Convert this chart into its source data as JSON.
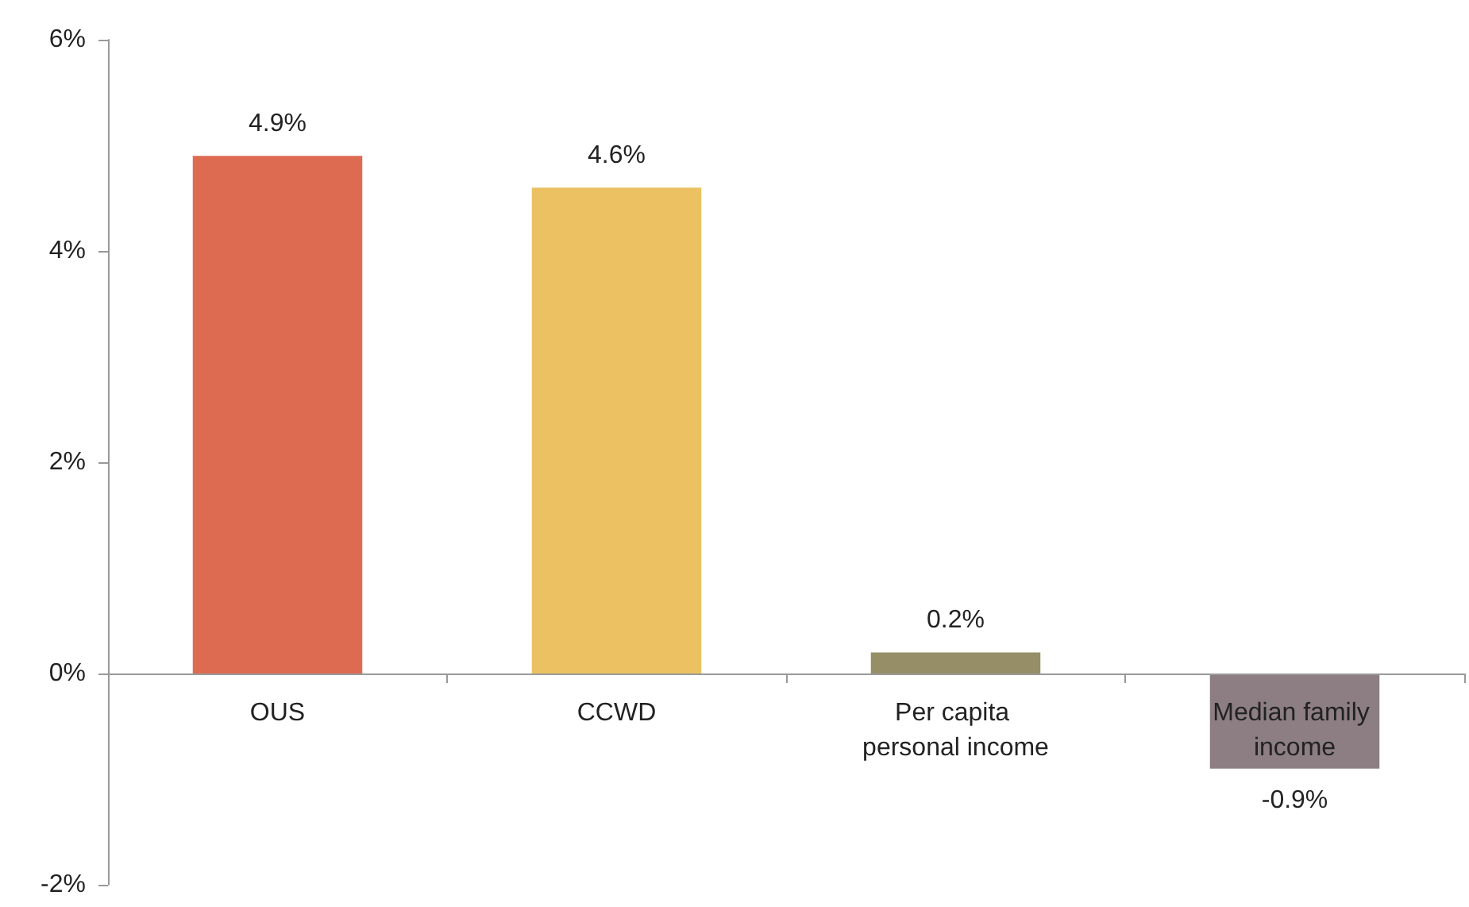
{
  "chart_data": {
    "type": "bar",
    "categories": [
      "OUS",
      "CCWD",
      "Per capita personal income",
      "Median family income"
    ],
    "values": [
      4.9,
      4.6,
      0.2,
      -0.9
    ],
    "colors": [
      "#dd6b52",
      "#ebc162",
      "#958e66",
      "#8c7e83"
    ],
    "value_labels": [
      "4.9%",
      "4.6%",
      "0.2%",
      "-0.9%"
    ],
    "ylim": [
      -2,
      6
    ],
    "yticks": [
      {
        "value": -2,
        "label": "-2%"
      },
      {
        "value": 0,
        "label": "0%"
      },
      {
        "value": 2,
        "label": "2%"
      },
      {
        "value": 4,
        "label": "4%"
      },
      {
        "value": 6,
        "label": "6%"
      }
    ]
  }
}
